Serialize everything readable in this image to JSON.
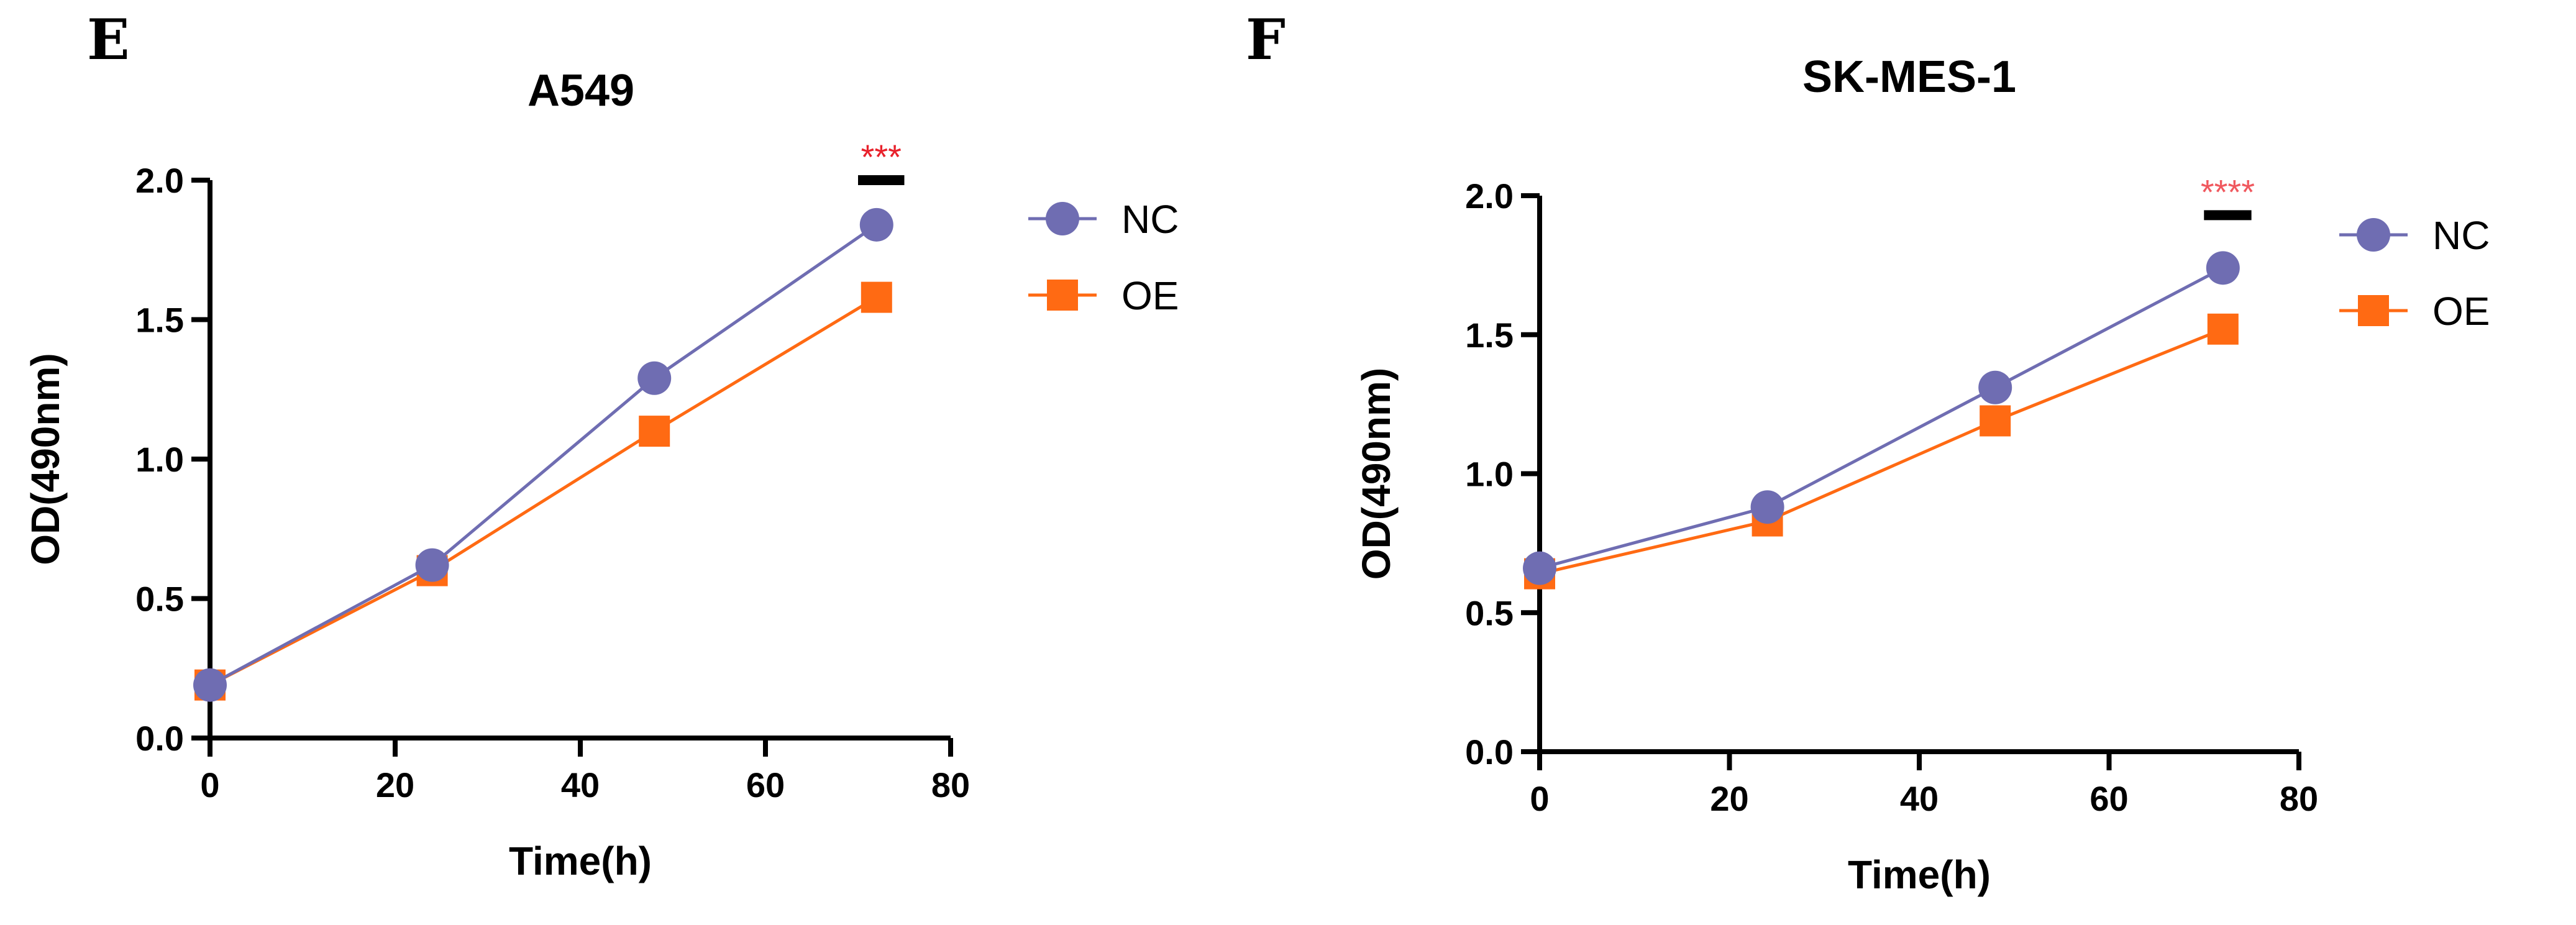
{
  "chart_data": [
    {
      "panel": "E",
      "type": "line",
      "title": "A549",
      "xlabel": "Time(h)",
      "ylabel": "OD(490nm)",
      "xlim": [
        0,
        80
      ],
      "ylim": [
        0,
        2.0
      ],
      "xticks": [
        "0",
        "20",
        "40",
        "60",
        "80"
      ],
      "yticks": [
        "0.0",
        "0.5",
        "1.0",
        "1.5",
        "2.0"
      ],
      "x": [
        0,
        24,
        48,
        72
      ],
      "series": [
        {
          "name": "NC",
          "marker": "circle",
          "color": "#6f6db2",
          "values": [
            0.19,
            0.62,
            1.29,
            1.84
          ],
          "errors": [
            0.01,
            0.01,
            0.04,
            0.01
          ]
        },
        {
          "name": "OE",
          "marker": "square",
          "color": "#ff6a13",
          "values": [
            0.19,
            0.6,
            1.1,
            1.58
          ],
          "errors": [
            0,
            0,
            0,
            0
          ]
        }
      ],
      "significance": {
        "label": "***",
        "color": "#e8212b",
        "x_range": [
          70,
          75
        ],
        "y": 2.0
      },
      "grid": false,
      "legend_position": "right"
    },
    {
      "panel": "F",
      "type": "line",
      "title": "SK-MES-1",
      "xlabel": "Time(h)",
      "ylabel": "OD(490nm)",
      "xlim": [
        0,
        80
      ],
      "ylim": [
        0,
        2.0
      ],
      "xticks": [
        "0",
        "20",
        "40",
        "60",
        "80"
      ],
      "yticks": [
        "0.0",
        "0.5",
        "1.0",
        "1.5",
        "2.0"
      ],
      "x": [
        0,
        24,
        48,
        72
      ],
      "series": [
        {
          "name": "NC",
          "marker": "circle",
          "color": "#6f6db2",
          "values": [
            0.66,
            0.88,
            1.31,
            1.74
          ],
          "errors": [
            0.01,
            0.01,
            0.01,
            0.01
          ]
        },
        {
          "name": "OE",
          "marker": "square",
          "color": "#ff6a13",
          "values": [
            0.64,
            0.83,
            1.19,
            1.52
          ],
          "errors": [
            0,
            0,
            0,
            0
          ]
        }
      ],
      "significance": {
        "label": "****",
        "color": "#f0585e",
        "x_range": [
          70,
          75
        ],
        "y": 1.93
      },
      "grid": false,
      "legend_position": "right"
    }
  ]
}
